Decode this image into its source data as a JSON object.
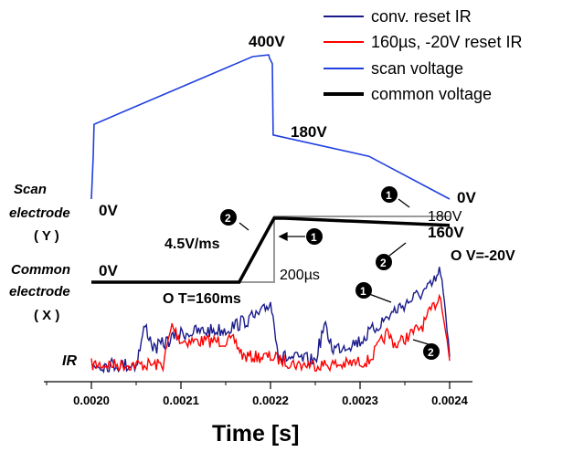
{
  "chart_data": {
    "type": "line",
    "xlabel": "Time [s]",
    "xlim": [
      0.00195,
      0.00243
    ],
    "xticks": [
      "0.0020",
      "0.0021",
      "0.0022",
      "0.0023",
      "0.0024"
    ],
    "xtick_values": [
      0.002,
      0.0021,
      0.0022,
      0.0023,
      0.0024
    ],
    "grid": false,
    "legend_position": "top-right",
    "legend": [
      {
        "label": "conv. reset IR",
        "color": "#1a1a8c"
      },
      {
        "label": "160µs, -20V reset IR",
        "color": "#ff0000"
      },
      {
        "label": "scan voltage",
        "color": "#1f3fe0"
      },
      {
        "label": "common voltage",
        "color": "#000000"
      }
    ],
    "row_labels": {
      "scan_line1": "Scan",
      "scan_line2": "electrode",
      "scan_line3": "( Y )",
      "common_line1": "Common",
      "common_line2": "electrode",
      "common_line3": "( X )",
      "ir": "IR"
    },
    "annotations": {
      "peak": "400V",
      "after_drop": "180V",
      "scan_start": "0V",
      "scan_end": "0V",
      "common_start": "0V",
      "ramp": "4.5V/ms",
      "high1": "180V",
      "high2": "160V",
      "width": "200µs",
      "t_param": "O T=160ms",
      "v_param": "O V=-20V",
      "marker1": "1",
      "marker2": "2"
    },
    "series": [
      {
        "name": "scan voltage",
        "color": "#1f3fe0",
        "x": [
          0.002,
          0.002002,
          0.002003,
          0.00218,
          0.002198,
          0.002199,
          0.002202,
          0.002203,
          0.00231,
          0.0024
        ],
        "y": [
          0,
          120,
          210,
          400,
          405,
          395,
          380,
          180,
          120,
          0
        ]
      },
      {
        "name": "common voltage",
        "color": "#000000",
        "x": [
          0.002,
          0.002165,
          0.002204,
          0.002215,
          0.0024
        ],
        "y": [
          0,
          0,
          180,
          180,
          160
        ]
      },
      {
        "name": "160µs, -20V reset IR",
        "color": "#ff0000",
        "x": [
          0.002,
          0.00205,
          0.00208,
          0.00209,
          0.0021,
          0.00216,
          0.00217,
          0.0022,
          0.00223,
          0.00228,
          0.00231,
          0.00233,
          0.00234,
          0.00237,
          0.00239,
          0.0024
        ],
        "y": [
          0.1,
          0.1,
          0.1,
          0.6,
          0.4,
          0.4,
          0.2,
          0.2,
          0.1,
          0.1,
          0.15,
          0.5,
          0.35,
          0.6,
          1.0,
          0.15
        ]
      },
      {
        "name": "conv. reset IR",
        "color": "#1a1a8c",
        "x": [
          0.002,
          0.00205,
          0.00206,
          0.00207,
          0.0021,
          0.00215,
          0.00219,
          0.0022,
          0.00221,
          0.00225,
          0.00226,
          0.00227,
          0.0023,
          0.00234,
          0.00238,
          0.00239,
          0.0024
        ],
        "y": [
          0.1,
          0.1,
          0.6,
          0.3,
          0.5,
          0.55,
          0.75,
          0.9,
          0.2,
          0.15,
          0.6,
          0.3,
          0.4,
          0.8,
          1.1,
          1.3,
          0.2
        ]
      }
    ]
  }
}
